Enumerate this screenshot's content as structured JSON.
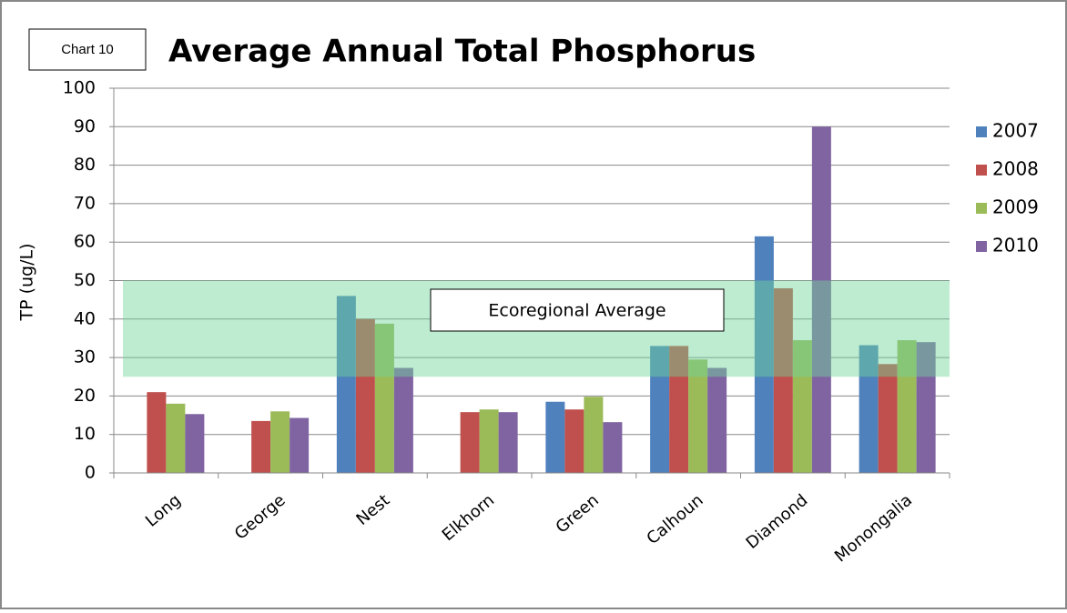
{
  "chart_data": {
    "type": "bar",
    "label": "Chart 10",
    "title": "Average Annual Total Phosphorus",
    "y_label": "TP (ug/L)",
    "categories": [
      "Long",
      "George",
      "Nest",
      "Elkhorn",
      "Green",
      "Calhoun",
      "Diamond",
      "Monongalia"
    ],
    "series": [
      {
        "name": "2007",
        "color": "#4f81bd",
        "values": [
          null,
          null,
          46,
          null,
          18.5,
          33,
          61.5,
          33.2
        ]
      },
      {
        "name": "2008",
        "color": "#c0504d",
        "values": [
          21,
          13.5,
          40,
          15.8,
          16.5,
          33,
          48,
          28.3
        ]
      },
      {
        "name": "2009",
        "color": "#9bbb59",
        "values": [
          18,
          16,
          38.8,
          16.5,
          19.8,
          29.5,
          34.5,
          34.5
        ]
      },
      {
        "name": "2010",
        "color": "#8064a2",
        "values": [
          15.3,
          14.3,
          27.3,
          15.8,
          13.2,
          27.3,
          90,
          34
        ]
      }
    ],
    "ylim": [
      0,
      100
    ],
    "yticks": [
      0,
      10,
      20,
      30,
      40,
      50,
      60,
      70,
      80,
      90,
      100
    ],
    "grid": true,
    "annotation": "Ecoregional Average",
    "ecoregional_band": [
      25,
      50
    ],
    "band_color": "#6fd49a",
    "legend": "right"
  }
}
